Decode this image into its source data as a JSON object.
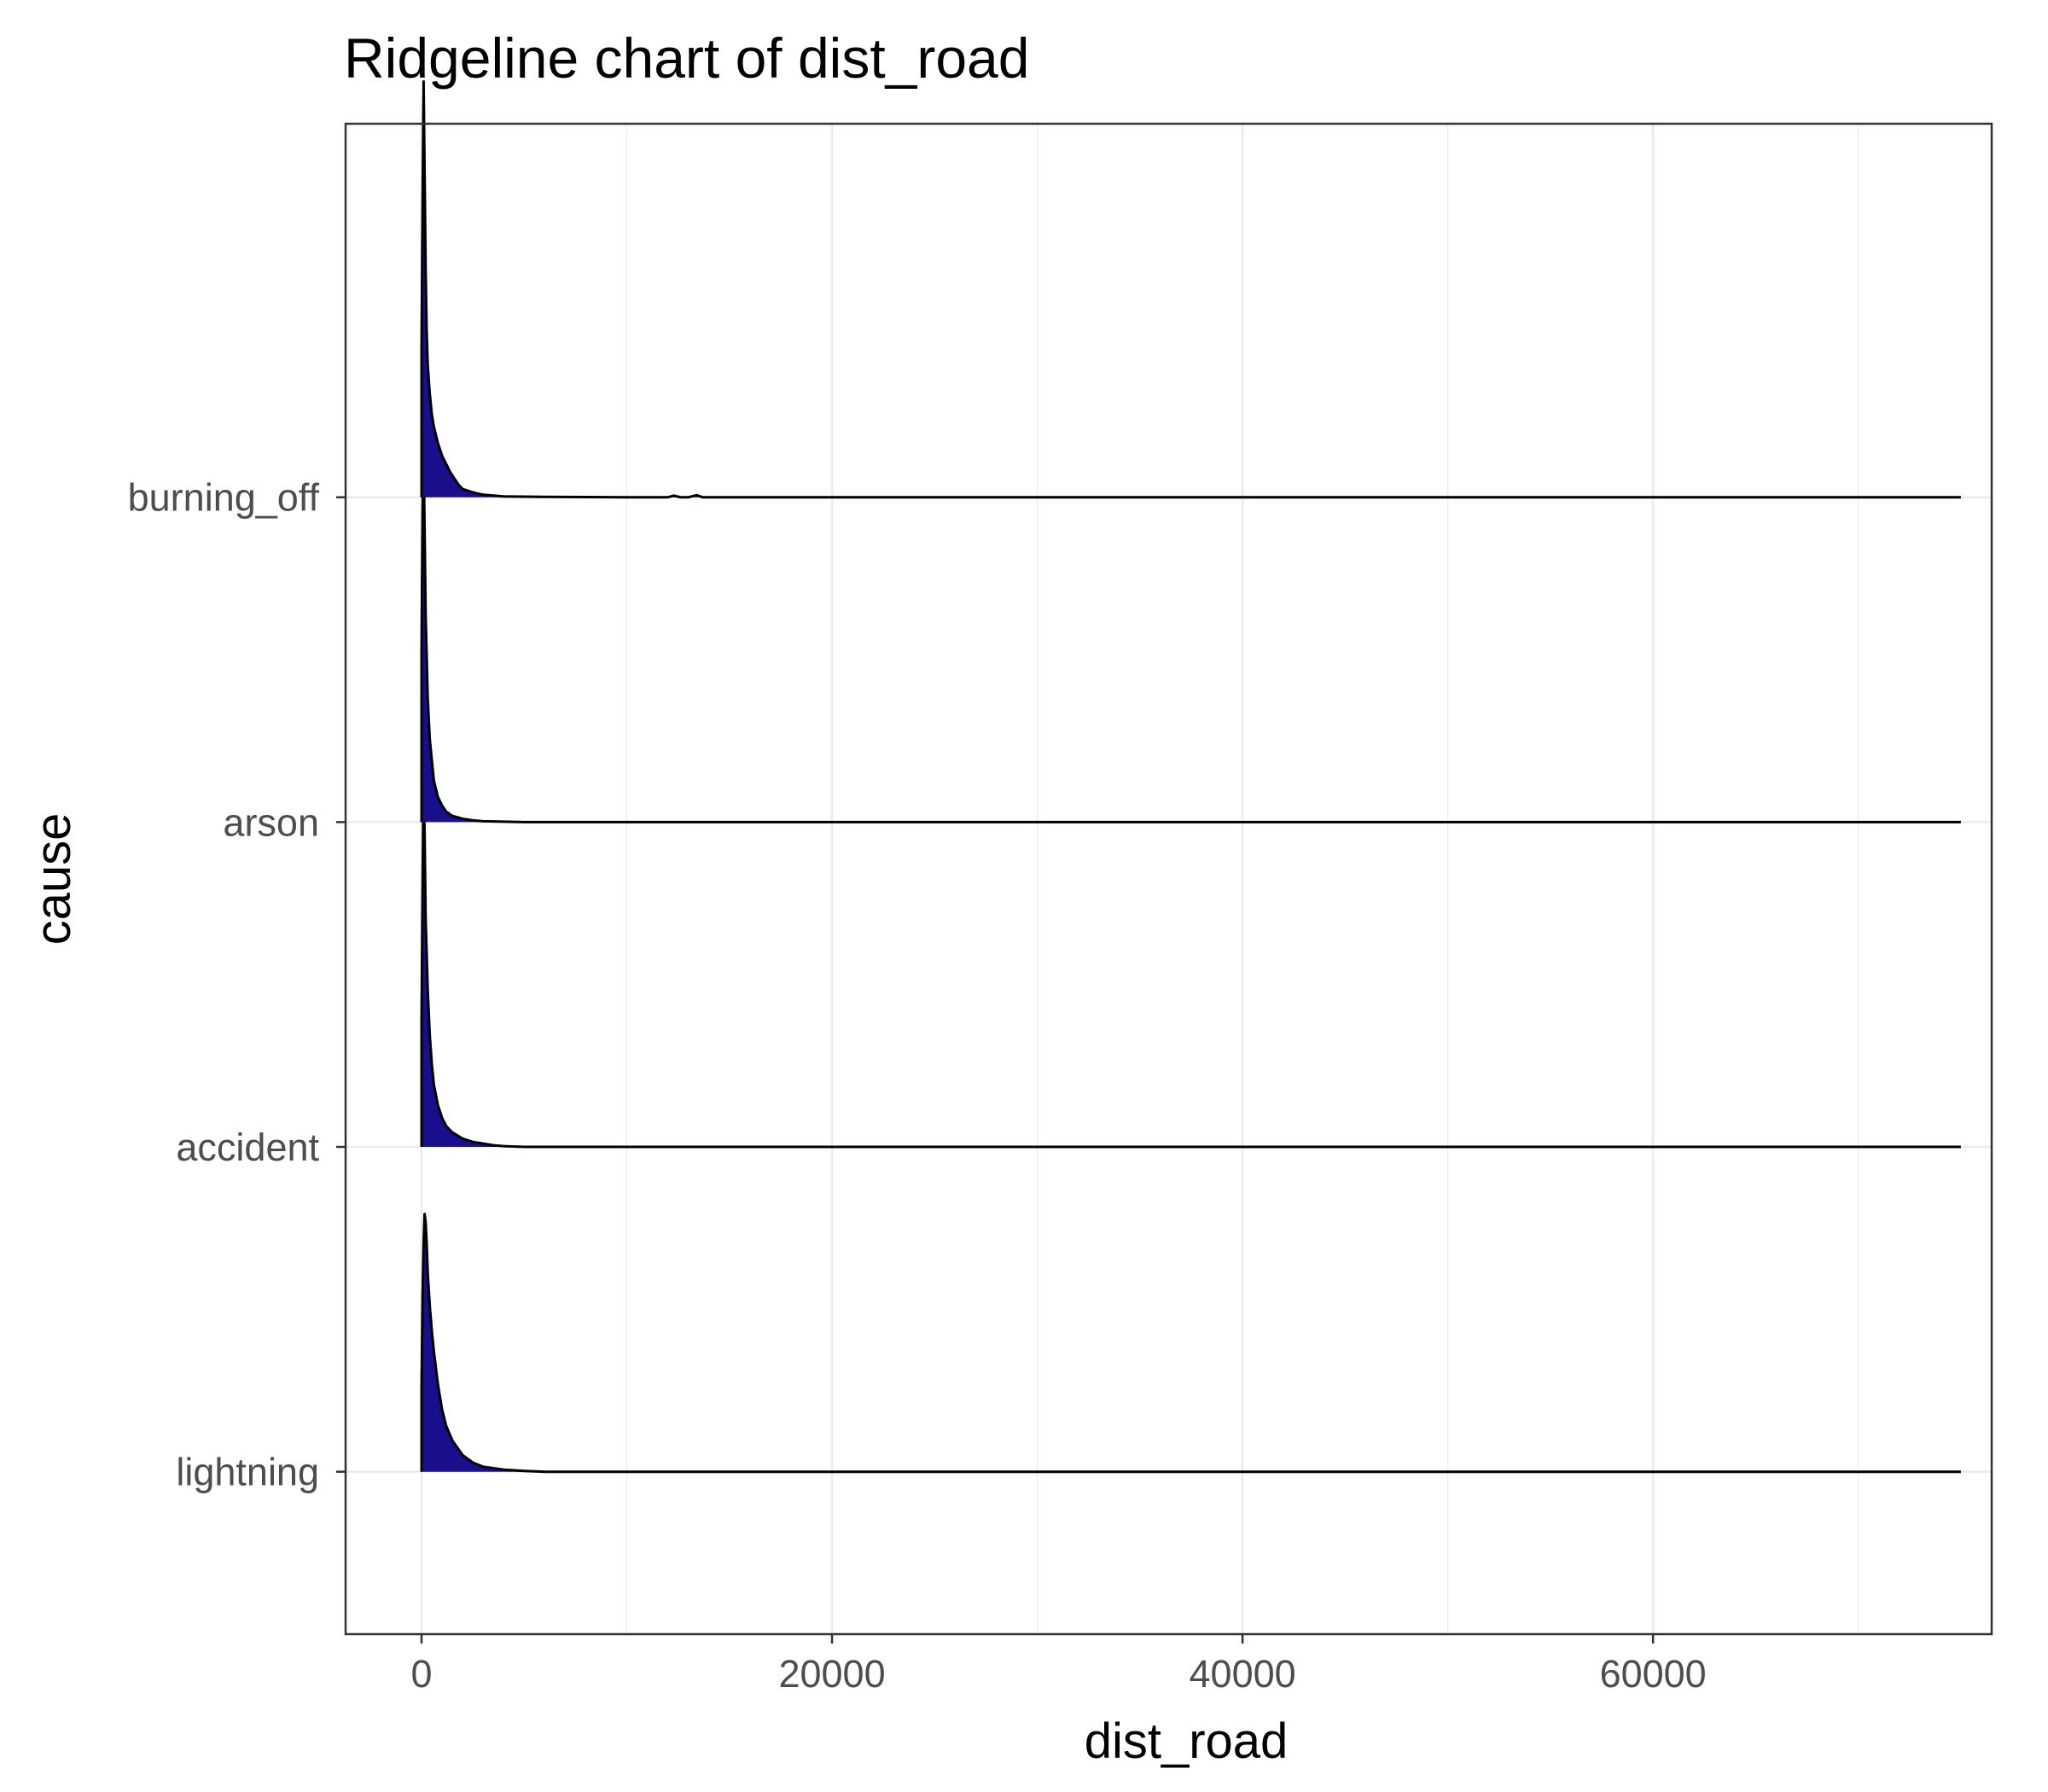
{
  "chart_data": {
    "type": "ridgeline",
    "title": "Ridgeline chart of dist_road",
    "xlabel": "dist_road",
    "ylabel": "cause",
    "xlim": [
      -3700,
      76500
    ],
    "x_ticks": [
      0,
      20000,
      40000,
      60000
    ],
    "x_tick_labels": [
      "0",
      "20000",
      "40000",
      "60000"
    ],
    "grid": true,
    "fill_color": "#1a0f8a",
    "outline_color": "#000000",
    "series": [
      {
        "name": "burning_off",
        "range": [
          0,
          75000
        ],
        "density_x": [
          0,
          50,
          100,
          150,
          200,
          250,
          300,
          400,
          500,
          600,
          700,
          800,
          900,
          1000,
          1200,
          1400,
          1600,
          1800,
          2000,
          2500,
          3000,
          3500,
          4000,
          6000,
          10000,
          12000,
          12300,
          12600,
          13000,
          13400,
          13700,
          14000,
          20000,
          75000
        ],
        "density_y": [
          0.35,
          0.7,
          1.0,
          0.78,
          0.55,
          0.4,
          0.32,
          0.25,
          0.2,
          0.17,
          0.15,
          0.13,
          0.115,
          0.1,
          0.08,
          0.06,
          0.045,
          0.03,
          0.02,
          0.012,
          0.006,
          0.004,
          0.002,
          0.001,
          0,
          0,
          0.004,
          0,
          0,
          0.005,
          0,
          0,
          0,
          0
        ]
      },
      {
        "name": "arson",
        "range": [
          0,
          75000
        ],
        "density_x": [
          0,
          50,
          100,
          150,
          200,
          300,
          400,
          500,
          600,
          800,
          1000,
          1200,
          1500,
          2000,
          2500,
          3000,
          5000,
          75000
        ],
        "density_y": [
          0.4,
          0.75,
          0.9,
          0.7,
          0.5,
          0.3,
          0.2,
          0.15,
          0.1,
          0.06,
          0.04,
          0.025,
          0.015,
          0.008,
          0.004,
          0.002,
          0,
          0
        ]
      },
      {
        "name": "accident",
        "range": [
          0,
          75000
        ],
        "density_x": [
          0,
          50,
          100,
          150,
          200,
          300,
          400,
          500,
          600,
          800,
          1000,
          1200,
          1500,
          2000,
          2500,
          3000,
          3500,
          4000,
          5000,
          75000
        ],
        "density_y": [
          0.3,
          0.62,
          0.9,
          0.75,
          0.55,
          0.38,
          0.27,
          0.2,
          0.15,
          0.1,
          0.07,
          0.05,
          0.035,
          0.02,
          0.012,
          0.008,
          0.004,
          0.002,
          0,
          0
        ]
      },
      {
        "name": "lightning",
        "range": [
          0,
          75000
        ],
        "density_x": [
          0,
          50,
          100,
          150,
          200,
          250,
          300,
          400,
          500,
          600,
          700,
          800,
          1000,
          1200,
          1500,
          2000,
          2500,
          3000,
          4000,
          5000,
          6000,
          75000
        ],
        "density_y": [
          0.2,
          0.42,
          0.55,
          0.62,
          0.6,
          0.55,
          0.48,
          0.4,
          0.34,
          0.29,
          0.25,
          0.21,
          0.15,
          0.11,
          0.075,
          0.04,
          0.022,
          0.012,
          0.005,
          0.002,
          0,
          0
        ]
      }
    ]
  }
}
